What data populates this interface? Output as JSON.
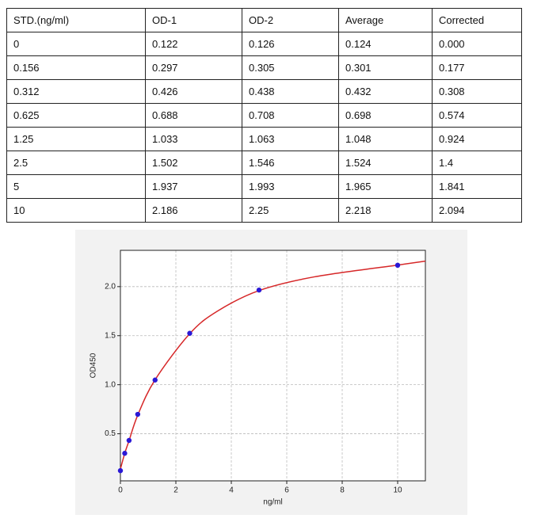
{
  "table": {
    "header": [
      "STD.(ng/ml)",
      "OD-1",
      "OD-2",
      "Average",
      "Corrected"
    ],
    "rows": [
      [
        "0",
        "0.122",
        "0.126",
        "0.124",
        "0.000"
      ],
      [
        "0.156",
        "0.297",
        "0.305",
        "0.301",
        "0.177"
      ],
      [
        "0.312",
        "0.426",
        "0.438",
        "0.432",
        "0.308"
      ],
      [
        "0.625",
        "0.688",
        "0.708",
        "0.698",
        "0.574"
      ],
      [
        "1.25",
        "1.033",
        "1.063",
        "1.048",
        "0.924"
      ],
      [
        "2.5",
        "1.502",
        "1.546",
        "1.524",
        "1.4"
      ],
      [
        "5",
        "1.937",
        "1.993",
        "1.965",
        "1.841"
      ],
      [
        "10",
        "2.186",
        "2.25",
        "2.218",
        "2.094"
      ]
    ]
  },
  "chart_data": {
    "type": "scatter",
    "x_label": "ng/ml",
    "y_label": "OD450",
    "xlim": [
      0,
      11
    ],
    "ylim": [
      0.02,
      2.37
    ],
    "xticks": [
      0,
      2,
      4,
      6,
      8,
      10
    ],
    "yticks": [
      0.5,
      {
        "value": 1.0,
        "label": "1.0"
      },
      1.5,
      {
        "value": 2.0,
        "label": "2.0"
      }
    ],
    "grid": true,
    "points": {
      "color": "#2a18d6",
      "x": [
        0,
        0.156,
        0.312,
        0.625,
        1.25,
        2.5,
        5,
        10
      ],
      "values": [
        0.124,
        0.301,
        0.432,
        0.698,
        1.048,
        1.524,
        1.965,
        2.218
      ]
    },
    "curve": {
      "color": "#d62728",
      "x": [
        0,
        0.156,
        0.312,
        0.625,
        1.25,
        2.5,
        3.5,
        5,
        7,
        10,
        11
      ],
      "values": [
        0.14,
        0.3,
        0.43,
        0.69,
        1.05,
        1.52,
        1.75,
        1.96,
        2.1,
        2.22,
        2.26
      ]
    }
  }
}
